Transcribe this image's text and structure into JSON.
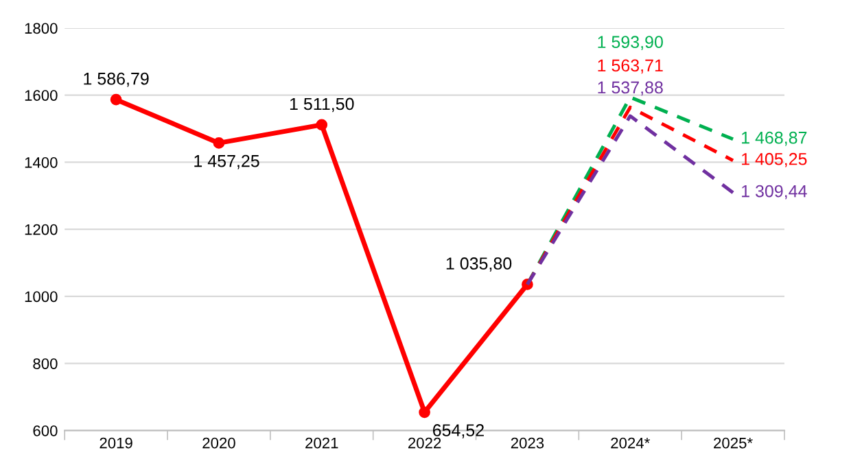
{
  "chart_data": {
    "type": "line",
    "categories": [
      "2019",
      "2020",
      "2021",
      "2022",
      "2023",
      "2024*",
      "2025*"
    ],
    "ylim": [
      600,
      1800
    ],
    "yticks": [
      600,
      800,
      1000,
      1200,
      1400,
      1600,
      1800
    ],
    "grid": "y",
    "series": [
      {
        "color": "#ff0000",
        "marker": "circle",
        "line_style": "solid",
        "values": [
          1586.79,
          1457.25,
          1511.5,
          654.52,
          1035.8,
          null,
          null
        ],
        "value_labels": [
          "1 586,79",
          "1 457,25",
          "1 511,50",
          "654,52",
          "1 035,80",
          null,
          null
        ]
      },
      {
        "color": "#00b050",
        "marker": "none",
        "line_style": "dashed",
        "values": [
          null,
          null,
          null,
          null,
          1035.8,
          1593.9,
          1468.87
        ],
        "value_labels": [
          null,
          null,
          null,
          null,
          null,
          "1 593,90",
          "1 468,87"
        ]
      },
      {
        "color": "#ff0000",
        "marker": "none",
        "line_style": "dashed",
        "values": [
          null,
          null,
          null,
          null,
          1035.8,
          1563.71,
          1405.25
        ],
        "value_labels": [
          null,
          null,
          null,
          null,
          null,
          "1 563,71",
          "1 405,25"
        ]
      },
      {
        "color": "#7030a0",
        "marker": "none",
        "line_style": "dashed",
        "values": [
          null,
          null,
          null,
          null,
          1035.8,
          1537.88,
          1309.44
        ],
        "value_labels": [
          null,
          null,
          null,
          null,
          null,
          "1 537,88",
          "1 309,44"
        ]
      }
    ]
  }
}
